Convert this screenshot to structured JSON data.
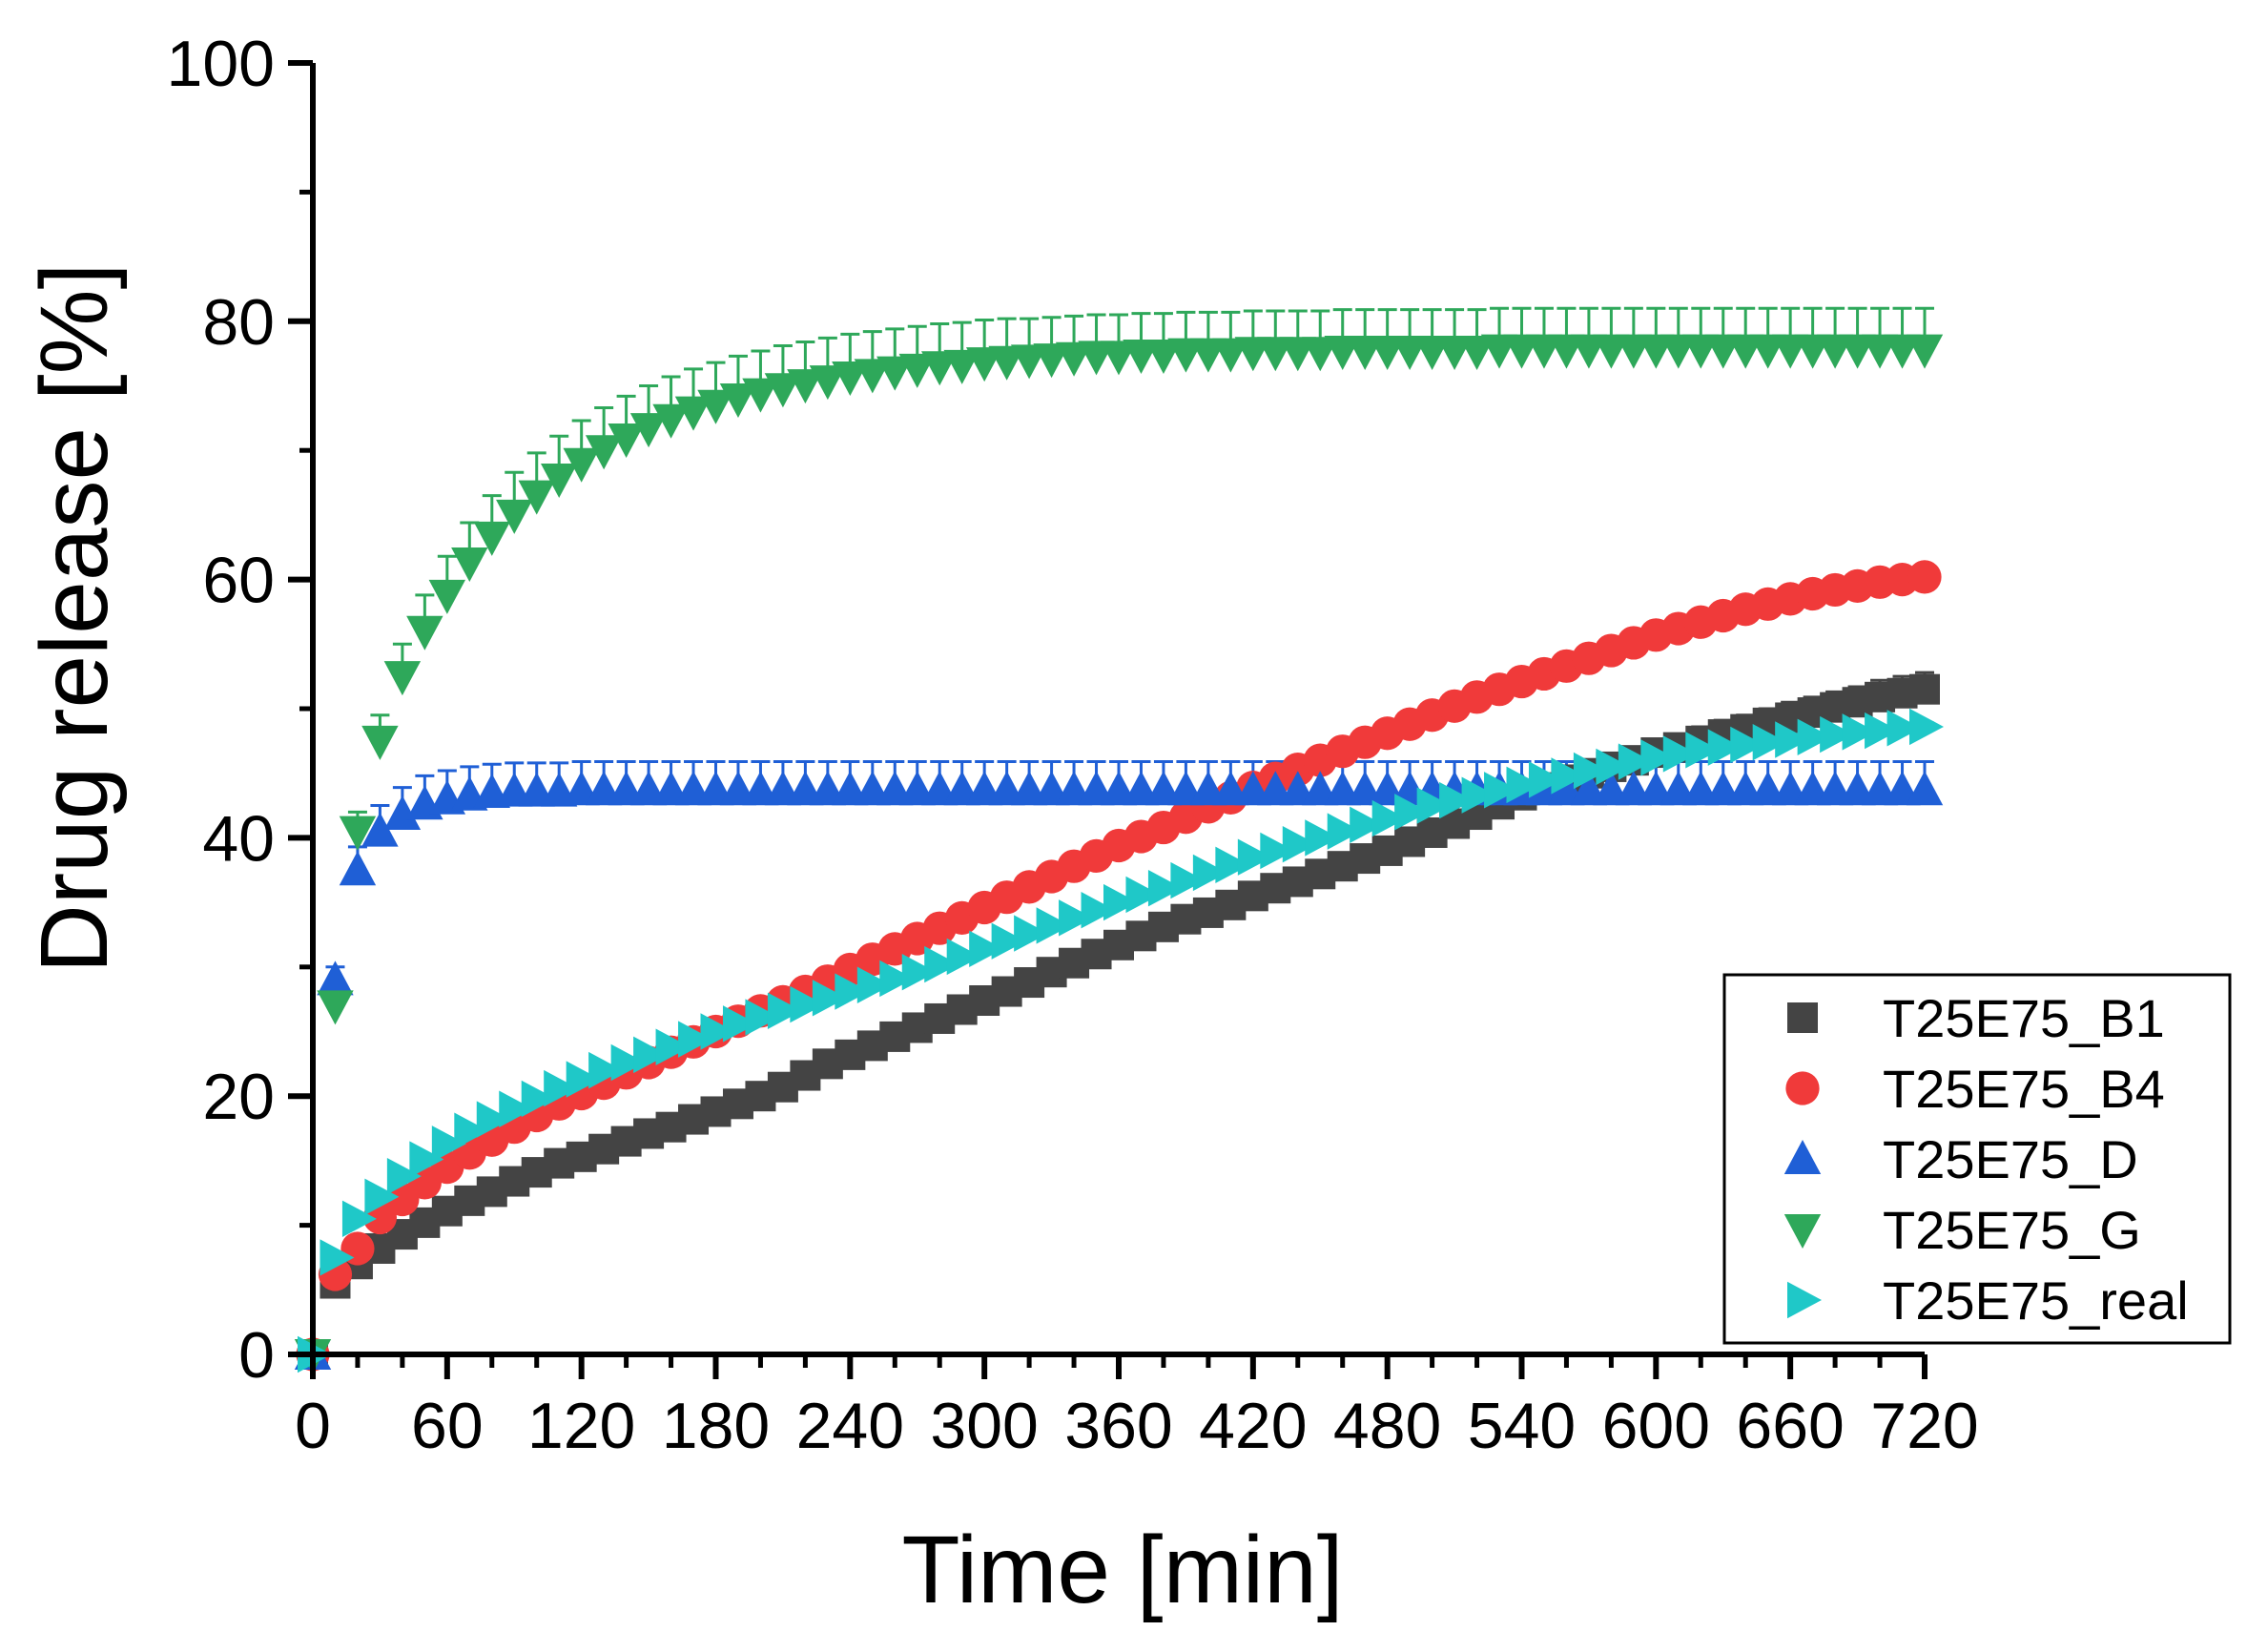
{
  "chart_data": {
    "type": "scatter",
    "title": "",
    "xlabel": "Time [min]",
    "ylabel": "Drug release [%]",
    "xlim": [
      0,
      720
    ],
    "ylim": [
      0,
      100
    ],
    "xticks": [
      0,
      60,
      120,
      180,
      240,
      300,
      360,
      420,
      480,
      540,
      600,
      660,
      720
    ],
    "yticks": [
      0,
      20,
      40,
      60,
      80,
      100
    ],
    "grid": false,
    "legend_position": "bottom-right",
    "error_bars": true,
    "series": [
      {
        "name": "T25E75_B1",
        "color": "#444444",
        "marker": "square",
        "x": [
          0,
          10,
          20,
          30,
          40,
          50,
          60,
          70,
          80,
          90,
          100,
          110,
          120,
          130,
          140,
          150,
          160,
          170,
          180,
          190,
          200,
          210,
          220,
          230,
          240,
          250,
          260,
          270,
          280,
          290,
          300,
          310,
          320,
          330,
          340,
          350,
          360,
          370,
          380,
          390,
          400,
          410,
          420,
          430,
          440,
          450,
          460,
          470,
          480,
          490,
          500,
          510,
          520,
          530,
          540,
          550,
          560,
          570,
          580,
          590,
          600,
          610,
          620,
          630,
          640,
          650,
          660,
          670,
          680,
          690,
          700,
          710,
          720
        ],
        "y": [
          0,
          5.5,
          7.0,
          8.2,
          9.3,
          10.2,
          11.1,
          11.9,
          12.6,
          13.4,
          14.1,
          14.8,
          15.3,
          15.9,
          16.5,
          17.1,
          17.6,
          18.2,
          18.8,
          19.4,
          20.0,
          20.7,
          21.6,
          22.5,
          23.2,
          23.9,
          24.6,
          25.3,
          26.0,
          26.7,
          27.4,
          28.1,
          28.8,
          29.6,
          30.3,
          31.0,
          31.7,
          32.4,
          33.1,
          33.7,
          34.2,
          34.8,
          35.5,
          36.1,
          36.6,
          37.2,
          37.8,
          38.4,
          39.0,
          39.7,
          40.4,
          41.1,
          41.8,
          42.6,
          43.3,
          43.9,
          44.5,
          45.0,
          45.5,
          46.0,
          46.6,
          47.0,
          47.5,
          48.0,
          48.4,
          48.9,
          49.3,
          49.7,
          50.1,
          50.5,
          50.9,
          51.2,
          51.5
        ],
        "err": [
          0,
          0.5,
          0.5,
          0.5,
          0.5,
          0.5,
          0.5,
          0.5,
          0.5,
          0.5,
          0.5,
          0.5,
          0.5,
          0.5,
          0.5,
          0.5,
          0.5,
          0.5,
          0.5,
          0.5,
          0.6,
          0.6,
          0.6,
          0.6,
          0.6,
          0.6,
          0.6,
          0.6,
          0.6,
          0.6,
          0.7,
          0.7,
          0.7,
          0.7,
          0.7,
          0.7,
          0.7,
          0.7,
          0.7,
          0.7,
          0.8,
          0.8,
          0.8,
          0.8,
          0.8,
          0.8,
          0.8,
          0.8,
          0.8,
          0.8,
          0.9,
          0.9,
          0.9,
          0.9,
          0.9,
          0.9,
          0.9,
          1.0,
          1.0,
          1.0,
          1.0,
          1.0,
          1.1,
          1.1,
          1.1,
          1.1,
          1.2,
          1.2,
          1.2,
          1.2,
          1.3,
          1.3,
          1.3
        ]
      },
      {
        "name": "T25E75_B4",
        "color": "#f03a3a",
        "marker": "circle",
        "x": [
          0,
          10,
          20,
          30,
          40,
          50,
          60,
          70,
          80,
          90,
          100,
          110,
          120,
          130,
          140,
          150,
          160,
          170,
          180,
          190,
          200,
          210,
          220,
          230,
          240,
          250,
          260,
          270,
          280,
          290,
          300,
          310,
          320,
          330,
          340,
          350,
          360,
          370,
          380,
          390,
          400,
          410,
          420,
          430,
          440,
          450,
          460,
          470,
          480,
          490,
          500,
          510,
          520,
          530,
          540,
          550,
          560,
          570,
          580,
          590,
          600,
          610,
          620,
          630,
          640,
          650,
          660,
          670,
          680,
          690,
          700,
          710,
          720
        ],
        "y": [
          0,
          6.2,
          8.2,
          10.6,
          12.0,
          13.3,
          14.5,
          15.6,
          16.6,
          17.6,
          18.5,
          19.4,
          20.2,
          21.0,
          21.8,
          22.6,
          23.4,
          24.2,
          25.0,
          25.8,
          26.6,
          27.3,
          28.1,
          28.9,
          29.8,
          30.6,
          31.4,
          32.2,
          33.0,
          33.8,
          34.6,
          35.4,
          36.2,
          37.0,
          37.8,
          38.6,
          39.4,
          40.1,
          40.8,
          41.6,
          42.4,
          43.1,
          43.9,
          44.6,
          45.3,
          46.0,
          46.7,
          47.4,
          48.1,
          48.8,
          49.5,
          50.2,
          50.9,
          51.5,
          52.1,
          52.7,
          53.3,
          53.9,
          54.5,
          55.1,
          55.7,
          56.2,
          56.7,
          57.2,
          57.7,
          58.1,
          58.5,
          58.9,
          59.2,
          59.5,
          59.8,
          60.0,
          60.2
        ],
        "err": [
          0,
          0.4,
          0.4,
          0.4,
          0.4,
          0.4,
          0.4,
          0.4,
          0.4,
          0.4,
          0.4,
          0.4,
          0.4,
          0.4,
          0.4,
          0.4,
          0.4,
          0.5,
          0.5,
          0.5,
          0.5,
          0.5,
          0.5,
          0.5,
          0.5,
          0.5,
          0.5,
          0.5,
          0.5,
          0.5,
          0.5,
          0.5,
          0.5,
          0.5,
          0.5,
          0.5,
          0.5,
          0.6,
          0.6,
          0.6,
          0.6,
          0.6,
          0.6,
          0.6,
          0.6,
          0.6,
          0.6,
          0.6,
          0.6,
          0.6,
          0.6,
          0.6,
          0.6,
          0.7,
          0.7,
          0.7,
          0.7,
          0.7,
          0.7,
          0.7,
          0.7,
          0.7,
          0.7,
          0.7,
          0.8,
          0.8,
          0.8,
          0.8,
          0.8,
          0.8,
          0.8,
          0.8,
          0.8
        ]
      },
      {
        "name": "T25E75_D",
        "color": "#1f5fd6",
        "marker": "triangle-up",
        "x": [
          0,
          10,
          20,
          30,
          40,
          50,
          60,
          70,
          80,
          90,
          100,
          110,
          120,
          130,
          140,
          150,
          160,
          170,
          180,
          190,
          200,
          210,
          220,
          230,
          240,
          250,
          260,
          270,
          280,
          290,
          300,
          310,
          320,
          330,
          340,
          350,
          360,
          370,
          380,
          390,
          400,
          410,
          420,
          430,
          440,
          450,
          460,
          470,
          480,
          490,
          500,
          510,
          520,
          530,
          540,
          550,
          560,
          570,
          580,
          590,
          600,
          610,
          620,
          630,
          640,
          650,
          660,
          670,
          680,
          690,
          700,
          710,
          720
        ],
        "y": [
          0,
          29.0,
          37.5,
          40.5,
          41.8,
          42.6,
          43.0,
          43.3,
          43.5,
          43.6,
          43.6,
          43.6,
          43.7,
          43.7,
          43.7,
          43.7,
          43.7,
          43.7,
          43.7,
          43.7,
          43.7,
          43.7,
          43.7,
          43.7,
          43.7,
          43.7,
          43.7,
          43.7,
          43.7,
          43.7,
          43.7,
          43.7,
          43.7,
          43.7,
          43.7,
          43.7,
          43.7,
          43.7,
          43.7,
          43.7,
          43.7,
          43.7,
          43.7,
          43.7,
          43.7,
          43.7,
          43.7,
          43.7,
          43.7,
          43.7,
          43.7,
          43.7,
          43.7,
          43.7,
          43.7,
          43.7,
          43.7,
          43.7,
          43.7,
          43.7,
          43.7,
          43.7,
          43.7,
          43.7,
          43.7,
          43.7,
          43.7,
          43.7,
          43.7,
          43.7,
          43.7,
          43.7,
          43.7
        ],
        "err": [
          0,
          1.0,
          1.8,
          2.0,
          2.1,
          2.2,
          2.2,
          2.2,
          2.2,
          2.2,
          2.2,
          2.2,
          2.2,
          2.2,
          2.2,
          2.2,
          2.2,
          2.2,
          2.2,
          2.2,
          2.2,
          2.2,
          2.2,
          2.2,
          2.2,
          2.2,
          2.2,
          2.2,
          2.2,
          2.2,
          2.2,
          2.2,
          2.2,
          2.2,
          2.2,
          2.2,
          2.2,
          2.2,
          2.2,
          2.2,
          2.2,
          2.2,
          2.2,
          2.2,
          2.2,
          2.2,
          2.2,
          2.2,
          2.2,
          2.2,
          2.2,
          2.2,
          2.2,
          2.2,
          2.2,
          2.2,
          2.2,
          2.2,
          2.2,
          2.2,
          2.2,
          2.2,
          2.2,
          2.2,
          2.2,
          2.2,
          2.2,
          2.2,
          2.2,
          2.2,
          2.2,
          2.2,
          2.2
        ]
      },
      {
        "name": "T25E75_G",
        "color": "#2ea85a",
        "marker": "triangle-down",
        "x": [
          0,
          10,
          20,
          30,
          40,
          50,
          60,
          70,
          80,
          90,
          100,
          110,
          120,
          130,
          140,
          150,
          160,
          170,
          180,
          190,
          200,
          210,
          220,
          230,
          240,
          250,
          260,
          270,
          280,
          290,
          300,
          310,
          320,
          330,
          340,
          350,
          360,
          370,
          380,
          390,
          400,
          410,
          420,
          430,
          440,
          450,
          460,
          470,
          480,
          490,
          500,
          510,
          520,
          530,
          540,
          550,
          560,
          570,
          580,
          590,
          600,
          610,
          620,
          630,
          640,
          650,
          660,
          670,
          680,
          690,
          700,
          710,
          720
        ],
        "y": [
          0,
          27.0,
          40.5,
          47.5,
          52.5,
          56.0,
          58.8,
          61.3,
          63.3,
          65.0,
          66.5,
          67.8,
          69.0,
          70.0,
          70.9,
          71.7,
          72.4,
          73.0,
          73.5,
          74.0,
          74.4,
          74.8,
          75.1,
          75.4,
          75.7,
          75.9,
          76.1,
          76.3,
          76.5,
          76.6,
          76.8,
          76.9,
          77.0,
          77.1,
          77.2,
          77.3,
          77.3,
          77.4,
          77.4,
          77.5,
          77.5,
          77.5,
          77.6,
          77.6,
          77.6,
          77.6,
          77.7,
          77.7,
          77.7,
          77.7,
          77.7,
          77.7,
          77.7,
          77.8,
          77.8,
          77.8,
          77.8,
          77.8,
          77.8,
          77.8,
          77.8,
          77.8,
          77.8,
          77.8,
          77.8,
          77.8,
          77.8,
          77.8,
          77.8,
          77.8,
          77.8,
          77.8,
          77.8
        ],
        "err": [
          0,
          0.8,
          1.5,
          2.0,
          2.5,
          2.8,
          3.0,
          3.1,
          3.2,
          3.3,
          3.3,
          3.3,
          3.3,
          3.3,
          3.3,
          3.3,
          3.3,
          3.3,
          3.3,
          3.3,
          3.3,
          3.3,
          3.3,
          3.3,
          3.3,
          3.3,
          3.3,
          3.3,
          3.3,
          3.3,
          3.3,
          3.3,
          3.2,
          3.2,
          3.2,
          3.2,
          3.2,
          3.2,
          3.2,
          3.2,
          3.2,
          3.2,
          3.2,
          3.2,
          3.2,
          3.2,
          3.2,
          3.2,
          3.2,
          3.2,
          3.2,
          3.2,
          3.2,
          3.2,
          3.2,
          3.2,
          3.2,
          3.2,
          3.2,
          3.2,
          3.2,
          3.2,
          3.2,
          3.2,
          3.2,
          3.2,
          3.2,
          3.2,
          3.2,
          3.2,
          3.2,
          3.2,
          3.2
        ]
      },
      {
        "name": "T25E75_real",
        "color": "#1fc8c8",
        "marker": "triangle-right",
        "x": [
          0,
          10,
          20,
          30,
          40,
          50,
          60,
          70,
          80,
          90,
          100,
          110,
          120,
          130,
          140,
          150,
          160,
          170,
          180,
          190,
          200,
          210,
          220,
          230,
          240,
          250,
          260,
          270,
          280,
          290,
          300,
          310,
          320,
          330,
          340,
          350,
          360,
          370,
          380,
          390,
          400,
          410,
          420,
          430,
          440,
          450,
          460,
          470,
          480,
          490,
          500,
          510,
          520,
          530,
          540,
          550,
          560,
          570,
          580,
          590,
          600,
          610,
          620,
          630,
          640,
          650,
          660,
          670,
          680,
          690,
          700,
          710,
          720
        ],
        "y": [
          0,
          7.5,
          10.5,
          12.2,
          13.8,
          15.1,
          16.3,
          17.3,
          18.2,
          19.0,
          19.8,
          20.6,
          21.3,
          22.0,
          22.6,
          23.2,
          23.8,
          24.4,
          25.0,
          25.6,
          26.1,
          26.6,
          27.1,
          27.6,
          28.1,
          28.6,
          29.1,
          29.6,
          30.2,
          30.8,
          31.4,
          32.0,
          32.6,
          33.2,
          33.8,
          34.4,
          35.0,
          35.6,
          36.1,
          36.7,
          37.3,
          37.9,
          38.5,
          39.0,
          39.5,
          40.0,
          40.5,
          41.0,
          41.5,
          42.0,
          42.5,
          42.9,
          43.3,
          43.7,
          44.1,
          44.5,
          44.8,
          45.2,
          45.5,
          45.9,
          46.2,
          46.5,
          46.8,
          47.0,
          47.2,
          47.4,
          47.6,
          47.8,
          48.0,
          48.2,
          48.3,
          48.5,
          48.6
        ],
        "err": [
          0,
          0.3,
          0.3,
          0.3,
          0.3,
          0.3,
          0.3,
          0.3,
          0.3,
          0.3,
          0.3,
          0.3,
          0.3,
          0.3,
          0.3,
          0.3,
          0.3,
          0.3,
          0.3,
          0.3,
          0.3,
          0.3,
          0.3,
          0.3,
          0.3,
          0.3,
          0.3,
          0.3,
          0.3,
          0.3,
          0.3,
          0.3,
          0.3,
          0.3,
          0.3,
          0.3,
          0.3,
          0.3,
          0.3,
          0.3,
          0.3,
          0.3,
          0.3,
          0.3,
          0.3,
          0.3,
          0.3,
          0.3,
          0.3,
          0.3,
          0.3,
          0.3,
          0.3,
          0.3,
          0.3,
          0.3,
          0.3,
          0.3,
          0.3,
          0.3,
          0.3,
          0.3,
          0.3,
          0.3,
          0.3,
          0.3,
          0.3,
          0.3,
          0.3,
          0.3,
          0.3,
          0.3,
          0.3
        ]
      }
    ]
  }
}
